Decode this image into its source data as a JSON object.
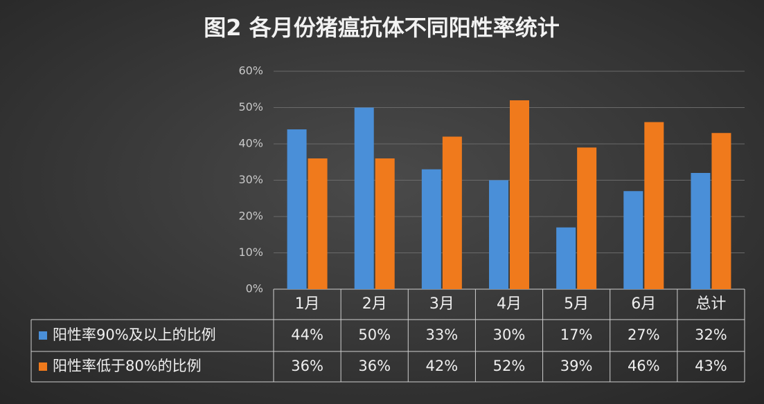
{
  "chart_data": {
    "type": "bar",
    "title": "图2 各月份猪瘟抗体不同阳性率统计",
    "categories": [
      "1月",
      "2月",
      "3月",
      "4月",
      "5月",
      "6月",
      "总计"
    ],
    "series": [
      {
        "name": "阳性率90%及以上的比例",
        "color": "#4a8fd8",
        "values": [
          44,
          50,
          33,
          30,
          17,
          27,
          32
        ],
        "value_labels": [
          "44%",
          "50%",
          "33%",
          "30%",
          "17%",
          "27%",
          "32%"
        ]
      },
      {
        "name": "阳性率低于80%的比例",
        "color": "#f07a1c",
        "values": [
          36,
          36,
          42,
          52,
          39,
          46,
          43
        ],
        "value_labels": [
          "36%",
          "36%",
          "42%",
          "52%",
          "39%",
          "46%",
          "43%"
        ]
      }
    ],
    "ylim": [
      0,
      60
    ],
    "yticks": [
      {
        "value": 0,
        "label": "0%"
      },
      {
        "value": 10,
        "label": "10%"
      },
      {
        "value": 20,
        "label": "20%"
      },
      {
        "value": 30,
        "label": "30%"
      },
      {
        "value": 40,
        "label": "40%"
      },
      {
        "value": 50,
        "label": "50%"
      },
      {
        "value": 60,
        "label": "60%"
      }
    ],
    "grid": true,
    "data_table": true
  }
}
